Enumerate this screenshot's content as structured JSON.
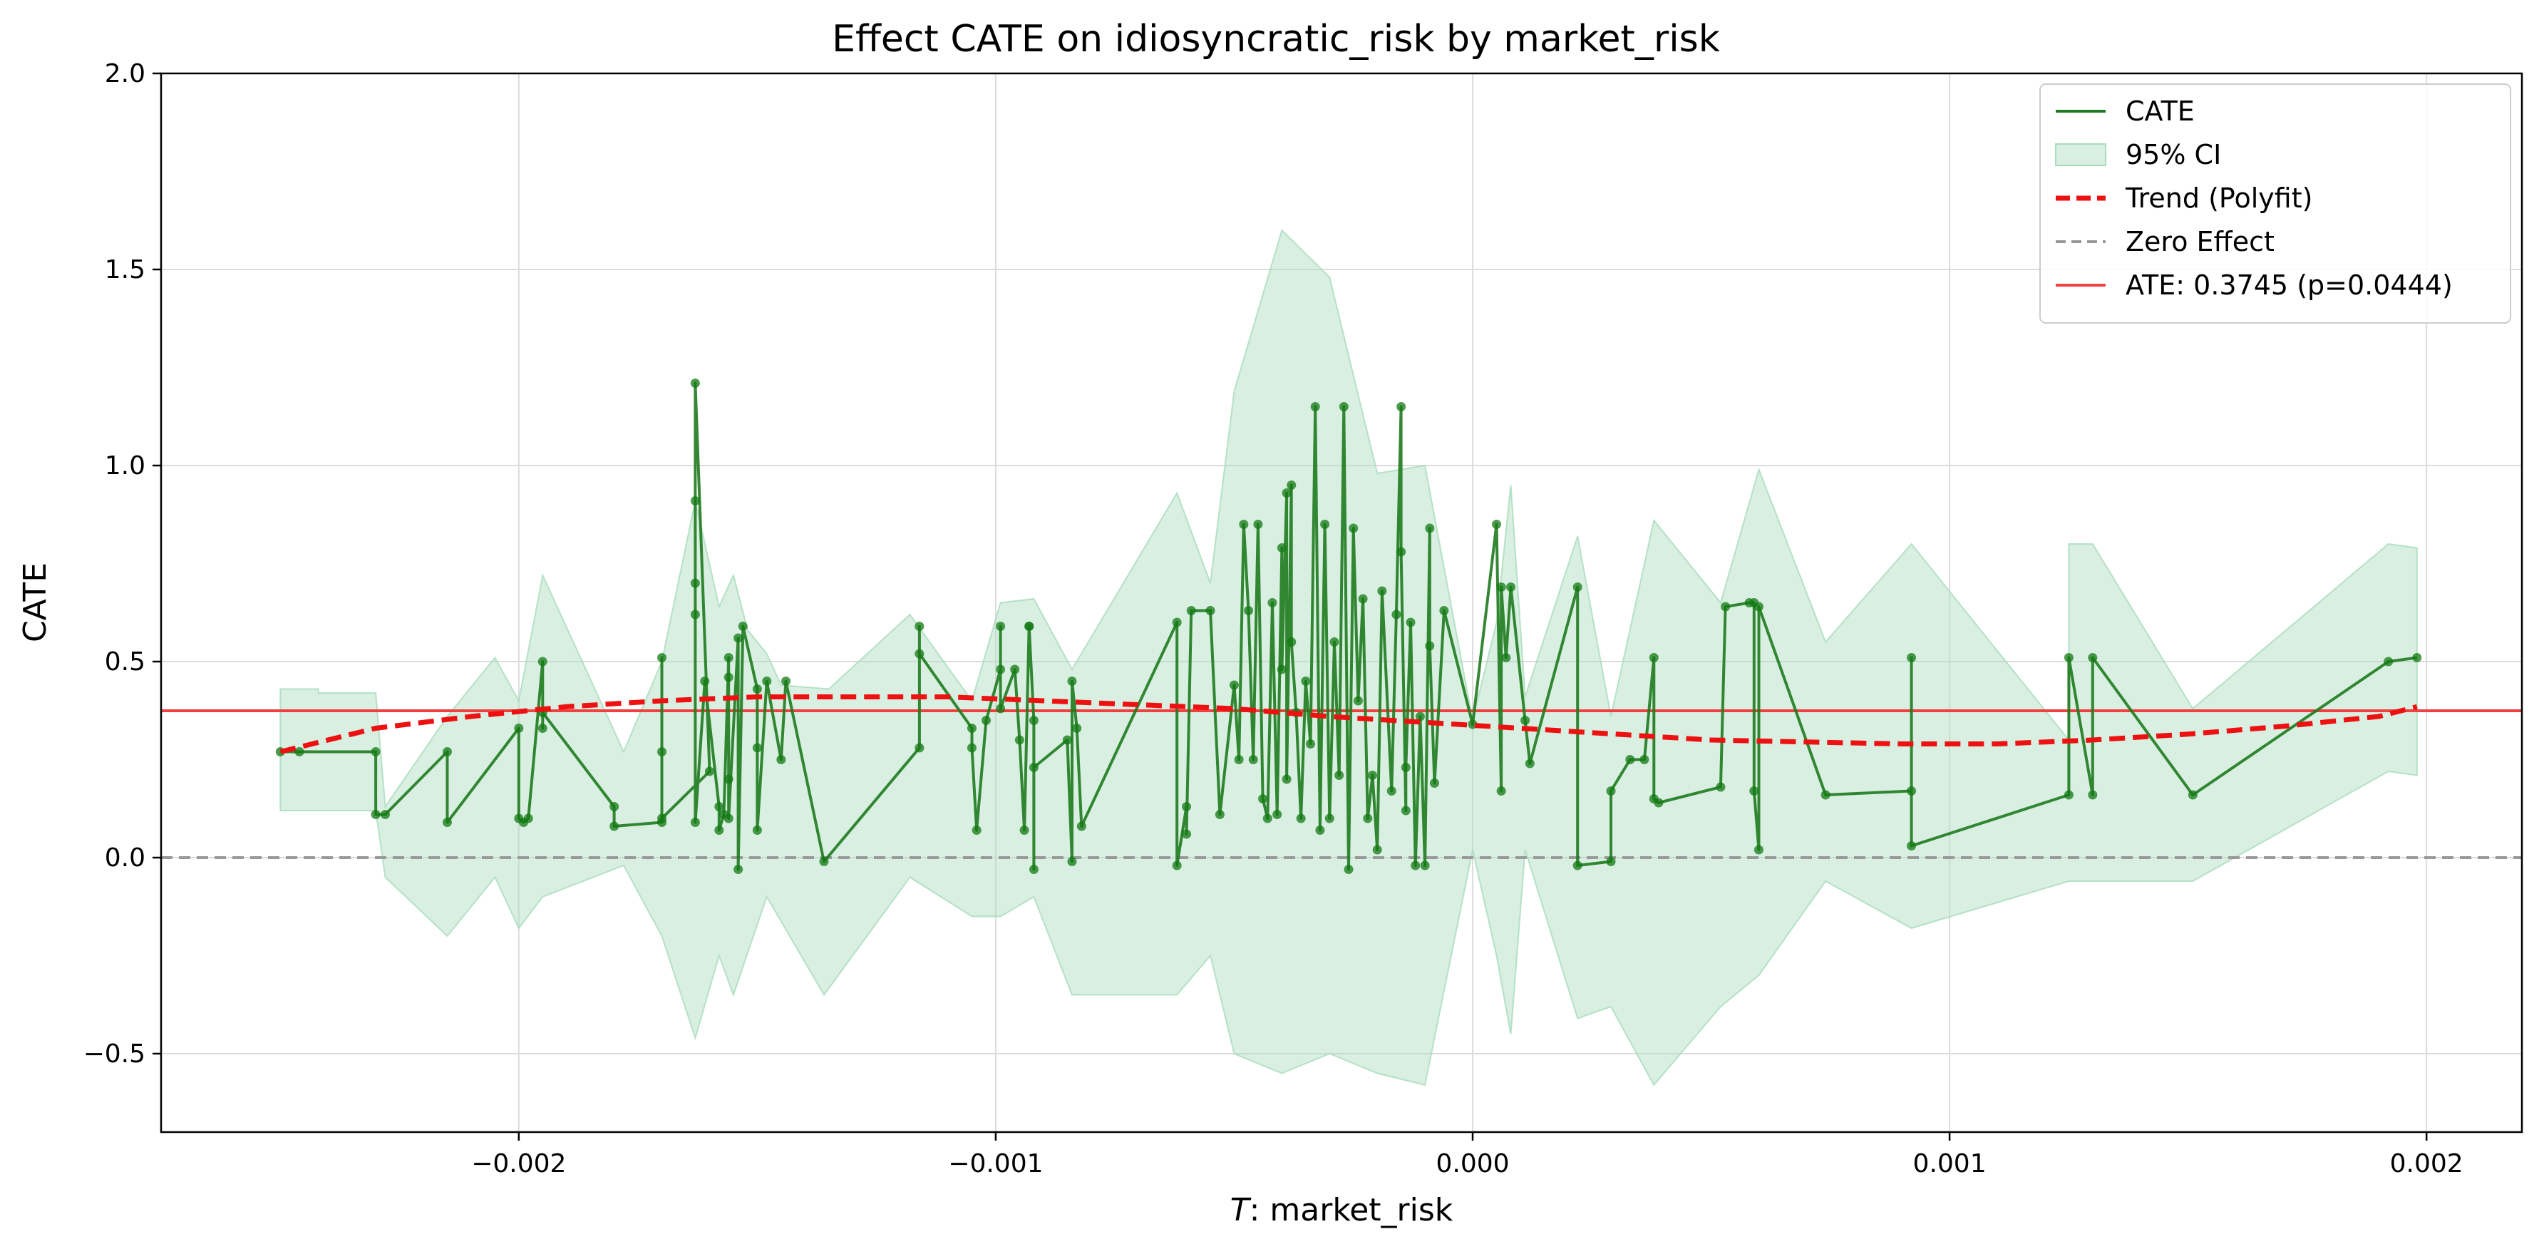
{
  "chart_data": {
    "type": "line",
    "title": "Effect CATE  on idiosyncratic_risk by market_risk",
    "xlabel_var": "T",
    "xlabel_rest": ": market_risk",
    "ylabel": "CATE",
    "xlim": [
      -0.00275,
      0.0022
    ],
    "ylim": [
      -0.7,
      2.0
    ],
    "grid": true,
    "legend_position": "top-right",
    "xticks": [
      -0.002,
      -0.001,
      0.0,
      0.001,
      0.002
    ],
    "xtick_labels": [
      "−0.002",
      "−0.001",
      "0.000",
      "0.001",
      "0.002"
    ],
    "yticks": [
      -0.5,
      0.0,
      0.5,
      1.0,
      1.5,
      2.0
    ],
    "ytick_labels": [
      "−0.5",
      "0.0",
      "0.5",
      "1.0",
      "1.5",
      "2.0"
    ],
    "legend": [
      {
        "label": "CATE",
        "style": "line",
        "color": "#1e7a1e"
      },
      {
        "label": "95% CI",
        "style": "patch",
        "color": "#a8dcbc"
      },
      {
        "label": "Trend (Polyfit)",
        "style": "dashed",
        "color": "#ee1111"
      },
      {
        "label": "Zero Effect",
        "style": "dashed-gray",
        "color": "#999999"
      },
      {
        "label": "ATE: 0.3745 (p=0.0444)",
        "style": "line",
        "color": "#f04040"
      }
    ],
    "ate": 0.3745,
    "zero_line": 0.0,
    "colors": {
      "cate": "#1e7a1e",
      "points": "#137a13",
      "ci": "#a8dcbc",
      "trend": "#ee1111",
      "ate": "#f04040",
      "zero": "#999999"
    },
    "cate_series": [
      [
        -0.0025,
        0.27
      ],
      [
        -0.00246,
        0.27
      ],
      [
        -0.0023,
        0.27
      ],
      [
        -0.0023,
        0.11
      ],
      [
        -0.00228,
        0.11
      ],
      [
        -0.00215,
        0.27
      ],
      [
        -0.00215,
        0.09
      ],
      [
        -0.002,
        0.33
      ],
      [
        -0.002,
        0.1
      ],
      [
        -0.00199,
        0.09
      ],
      [
        -0.00198,
        0.1
      ],
      [
        -0.00195,
        0.5
      ],
      [
        -0.00195,
        0.33
      ],
      [
        -0.00195,
        0.37
      ],
      [
        -0.0018,
        0.13
      ],
      [
        -0.0018,
        0.08
      ],
      [
        -0.0017,
        0.09
      ],
      [
        -0.0017,
        0.51
      ],
      [
        -0.0017,
        0.27
      ],
      [
        -0.0017,
        0.1
      ],
      [
        -0.0016,
        0.22
      ],
      [
        -0.00163,
        1.21
      ],
      [
        -0.00163,
        0.91
      ],
      [
        -0.00163,
        0.7
      ],
      [
        -0.00163,
        0.62
      ],
      [
        -0.00163,
        0.09
      ],
      [
        -0.00161,
        0.45
      ],
      [
        -0.00158,
        0.13
      ],
      [
        -0.00158,
        0.07
      ],
      [
        -0.00157,
        0.11
      ],
      [
        -0.00156,
        0.51
      ],
      [
        -0.00156,
        0.46
      ],
      [
        -0.00156,
        0.2
      ],
      [
        -0.00156,
        0.1
      ],
      [
        -0.00154,
        0.56
      ],
      [
        -0.00154,
        -0.03
      ],
      [
        -0.00153,
        0.59
      ],
      [
        -0.0015,
        0.43
      ],
      [
        -0.0015,
        0.28
      ],
      [
        -0.0015,
        0.07
      ],
      [
        -0.00148,
        0.45
      ],
      [
        -0.00145,
        0.25
      ],
      [
        -0.00144,
        0.45
      ],
      [
        -0.00136,
        -0.01
      ],
      [
        -0.00116,
        0.28
      ],
      [
        -0.00116,
        0.59
      ],
      [
        -0.00116,
        0.52
      ],
      [
        -0.00105,
        0.33
      ],
      [
        -0.00105,
        0.28
      ],
      [
        -0.00104,
        0.07
      ],
      [
        -0.00102,
        0.35
      ],
      [
        -0.00099,
        0.48
      ],
      [
        -0.00099,
        0.59
      ],
      [
        -0.00099,
        0.38
      ],
      [
        -0.00096,
        0.48
      ],
      [
        -0.00095,
        0.3
      ],
      [
        -0.00094,
        0.07
      ],
      [
        -0.00093,
        0.59
      ],
      [
        -0.00093,
        0.59
      ],
      [
        -0.00092,
        0.35
      ],
      [
        -0.00092,
        -0.03
      ],
      [
        -0.00092,
        0.23
      ],
      [
        -0.00085,
        0.3
      ],
      [
        -0.00084,
        -0.01
      ],
      [
        -0.00084,
        0.45
      ],
      [
        -0.00083,
        0.33
      ],
      [
        -0.00082,
        0.08
      ],
      [
        -0.00062,
        0.6
      ],
      [
        -0.00062,
        -0.02
      ],
      [
        -0.0006,
        0.13
      ],
      [
        -0.0006,
        0.06
      ],
      [
        -0.00059,
        0.63
      ],
      [
        -0.00055,
        0.63
      ],
      [
        -0.00053,
        0.11
      ],
      [
        -0.0005,
        0.44
      ],
      [
        -0.00049,
        0.25
      ],
      [
        -0.00048,
        0.85
      ],
      [
        -0.00047,
        0.63
      ],
      [
        -0.00046,
        0.25
      ],
      [
        -0.00045,
        0.85
      ],
      [
        -0.00044,
        0.15
      ],
      [
        -0.00043,
        0.1
      ],
      [
        -0.00042,
        0.65
      ],
      [
        -0.00041,
        0.11
      ],
      [
        -0.0004,
        0.79
      ],
      [
        -0.0004,
        0.48
      ],
      [
        -0.00039,
        0.93
      ],
      [
        -0.00039,
        0.2
      ],
      [
        -0.00038,
        0.95
      ],
      [
        -0.00038,
        0.55
      ],
      [
        -0.00037,
        0.37
      ],
      [
        -0.00036,
        0.1
      ],
      [
        -0.00035,
        0.45
      ],
      [
        -0.00034,
        0.29
      ],
      [
        -0.00033,
        1.15
      ],
      [
        -0.00032,
        0.07
      ],
      [
        -0.00031,
        0.85
      ],
      [
        -0.0003,
        0.1
      ],
      [
        -0.00029,
        0.55
      ],
      [
        -0.00028,
        0.21
      ],
      [
        -0.00027,
        1.15
      ],
      [
        -0.00026,
        -0.03
      ],
      [
        -0.00025,
        0.84
      ],
      [
        -0.00024,
        0.4
      ],
      [
        -0.00023,
        0.66
      ],
      [
        -0.00022,
        0.1
      ],
      [
        -0.00021,
        0.21
      ],
      [
        -0.0002,
        0.02
      ],
      [
        -0.00019,
        0.68
      ],
      [
        -0.00017,
        0.17
      ],
      [
        -0.00016,
        0.62
      ],
      [
        -0.00015,
        1.15
      ],
      [
        -0.00015,
        0.78
      ],
      [
        -0.00014,
        0.12
      ],
      [
        -0.00014,
        0.23
      ],
      [
        -0.00013,
        0.6
      ],
      [
        -0.00012,
        -0.02
      ],
      [
        -0.00011,
        0.36
      ],
      [
        -0.0001,
        -0.02
      ],
      [
        -9e-05,
        0.84
      ],
      [
        -9e-05,
        0.54
      ],
      [
        -8e-05,
        0.19
      ],
      [
        -6e-05,
        0.63
      ],
      [
        0.0,
        0.34
      ],
      [
        5e-05,
        0.85
      ],
      [
        6e-05,
        0.17
      ],
      [
        6e-05,
        0.69
      ],
      [
        7e-05,
        0.51
      ],
      [
        8e-05,
        0.69
      ],
      [
        0.00011,
        0.35
      ],
      [
        0.00012,
        0.24
      ],
      [
        0.00022,
        0.69
      ],
      [
        0.00022,
        -0.02
      ],
      [
        0.00029,
        -0.01
      ],
      [
        0.00029,
        0.17
      ],
      [
        0.00033,
        0.25
      ],
      [
        0.00036,
        0.25
      ],
      [
        0.00038,
        0.51
      ],
      [
        0.00038,
        0.15
      ],
      [
        0.00039,
        0.14
      ],
      [
        0.00052,
        0.18
      ],
      [
        0.00053,
        0.64
      ],
      [
        0.00058,
        0.65
      ],
      [
        0.00059,
        0.65
      ],
      [
        0.00059,
        0.17
      ],
      [
        0.0006,
        0.02
      ],
      [
        0.0006,
        0.64
      ],
      [
        0.00074,
        0.16
      ],
      [
        0.00092,
        0.17
      ],
      [
        0.00092,
        0.51
      ],
      [
        0.00092,
        0.03
      ],
      [
        0.00125,
        0.16
      ],
      [
        0.00125,
        0.51
      ],
      [
        0.0013,
        0.16
      ],
      [
        0.0013,
        0.51
      ],
      [
        0.00151,
        0.16
      ],
      [
        0.00192,
        0.5
      ],
      [
        0.00198,
        0.51
      ]
    ],
    "ci_upper": [
      [
        -0.0025,
        0.43
      ],
      [
        -0.00242,
        0.43
      ],
      [
        -0.00242,
        0.42
      ],
      [
        -0.0023,
        0.42
      ],
      [
        -0.00228,
        0.13
      ],
      [
        -0.00215,
        0.36
      ],
      [
        -0.00205,
        0.51
      ],
      [
        -0.002,
        0.4
      ],
      [
        -0.00195,
        0.72
      ],
      [
        -0.00178,
        0.27
      ],
      [
        -0.0017,
        0.5
      ],
      [
        -0.00163,
        0.91
      ],
      [
        -0.00158,
        0.64
      ],
      [
        -0.00155,
        0.72
      ],
      [
        -0.00152,
        0.58
      ],
      [
        -0.00148,
        0.52
      ],
      [
        -0.00145,
        0.44
      ],
      [
        -0.00135,
        0.43
      ],
      [
        -0.00118,
        0.62
      ],
      [
        -0.00105,
        0.4
      ],
      [
        -0.00099,
        0.65
      ],
      [
        -0.00092,
        0.66
      ],
      [
        -0.00084,
        0.48
      ],
      [
        -0.00062,
        0.93
      ],
      [
        -0.00055,
        0.7
      ],
      [
        -0.0005,
        1.19
      ],
      [
        -0.0004,
        1.6
      ],
      [
        -0.0003,
        1.48
      ],
      [
        -0.0002,
        0.98
      ],
      [
        -0.0001,
        1.0
      ],
      [
        0.0,
        0.35
      ],
      [
        5e-05,
        0.6
      ],
      [
        8e-05,
        0.95
      ],
      [
        0.00011,
        0.41
      ],
      [
        0.00022,
        0.82
      ],
      [
        0.00029,
        0.36
      ],
      [
        0.00038,
        0.86
      ],
      [
        0.00052,
        0.65
      ],
      [
        0.0006,
        0.99
      ],
      [
        0.00074,
        0.55
      ],
      [
        0.00092,
        0.8
      ],
      [
        0.00125,
        0.3
      ],
      [
        0.00125,
        0.8
      ],
      [
        0.0013,
        0.8
      ],
      [
        0.00151,
        0.38
      ],
      [
        0.00192,
        0.8
      ],
      [
        0.00198,
        0.79
      ]
    ],
    "ci_lower": [
      [
        -0.0025,
        0.12
      ],
      [
        -0.00242,
        0.12
      ],
      [
        -0.0023,
        0.12
      ],
      [
        -0.00228,
        -0.05
      ],
      [
        -0.00215,
        -0.2
      ],
      [
        -0.00205,
        -0.05
      ],
      [
        -0.002,
        -0.18
      ],
      [
        -0.00195,
        -0.1
      ],
      [
        -0.00178,
        -0.02
      ],
      [
        -0.0017,
        -0.2
      ],
      [
        -0.00163,
        -0.46
      ],
      [
        -0.00158,
        -0.25
      ],
      [
        -0.00155,
        -0.35
      ],
      [
        -0.00148,
        -0.1
      ],
      [
        -0.00136,
        -0.35
      ],
      [
        -0.00118,
        -0.05
      ],
      [
        -0.00105,
        -0.15
      ],
      [
        -0.00099,
        -0.15
      ],
      [
        -0.00092,
        -0.1
      ],
      [
        -0.00084,
        -0.35
      ],
      [
        -0.00062,
        -0.35
      ],
      [
        -0.00055,
        -0.25
      ],
      [
        -0.0005,
        -0.5
      ],
      [
        -0.0004,
        -0.55
      ],
      [
        -0.0003,
        -0.5
      ],
      [
        -0.0002,
        -0.55
      ],
      [
        -0.0001,
        -0.58
      ],
      [
        0.0,
        0.02
      ],
      [
        5e-05,
        -0.25
      ],
      [
        8e-05,
        -0.45
      ],
      [
        0.00011,
        0.02
      ],
      [
        0.00022,
        -0.41
      ],
      [
        0.00029,
        -0.38
      ],
      [
        0.00038,
        -0.58
      ],
      [
        0.00052,
        -0.38
      ],
      [
        0.0006,
        -0.3
      ],
      [
        0.00074,
        -0.06
      ],
      [
        0.00092,
        -0.18
      ],
      [
        0.00125,
        -0.06
      ],
      [
        0.0013,
        -0.06
      ],
      [
        0.00151,
        -0.06
      ],
      [
        0.00192,
        0.22
      ],
      [
        0.00198,
        0.21
      ]
    ],
    "trend": [
      [
        -0.0025,
        0.27
      ],
      [
        -0.0023,
        0.33
      ],
      [
        -0.0021,
        0.36
      ],
      [
        -0.0019,
        0.385
      ],
      [
        -0.0017,
        0.4
      ],
      [
        -0.0015,
        0.41
      ],
      [
        -0.0013,
        0.41
      ],
      [
        -0.0011,
        0.41
      ],
      [
        -0.0009,
        0.4
      ],
      [
        -0.0007,
        0.39
      ],
      [
        -0.0005,
        0.38
      ],
      [
        -0.0003,
        0.36
      ],
      [
        -0.0001,
        0.345
      ],
      [
        0.0001,
        0.33
      ],
      [
        0.0003,
        0.315
      ],
      [
        0.0005,
        0.3
      ],
      [
        0.0007,
        0.295
      ],
      [
        0.0009,
        0.29
      ],
      [
        0.0011,
        0.29
      ],
      [
        0.0013,
        0.3
      ],
      [
        0.0015,
        0.315
      ],
      [
        0.0017,
        0.335
      ],
      [
        0.0019,
        0.36
      ],
      [
        0.00198,
        0.385
      ]
    ]
  }
}
